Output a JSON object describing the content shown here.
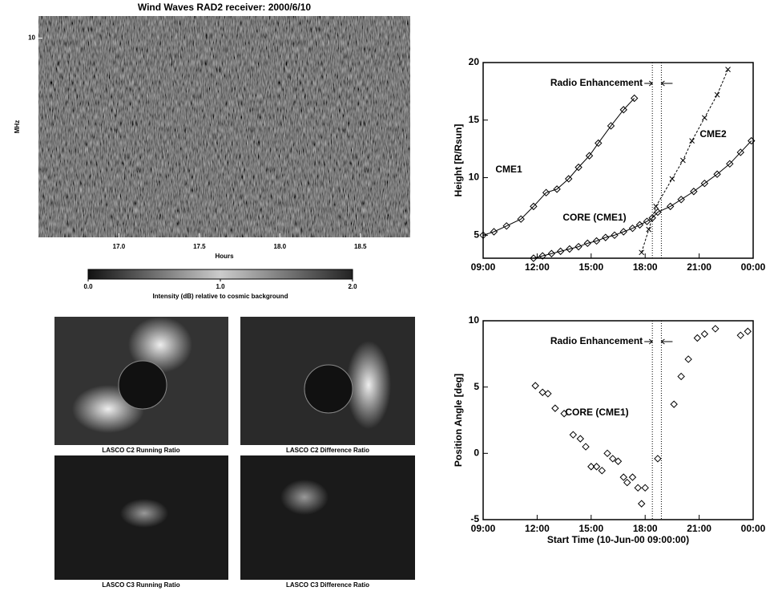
{
  "chart_data": [
    {
      "type": "spectrogram",
      "title": "Wind Waves RAD2 receiver: 2000/6/10",
      "xlabel": "Hours",
      "ylabel": "MHz",
      "xlim": [
        16.5,
        18.81
      ],
      "xticks": [
        {
          "value": 17,
          "label": "17.0"
        },
        {
          "value": 17.5,
          "label": "17.5"
        },
        {
          "value": 18,
          "label": "18.0"
        },
        {
          "value": 18.5,
          "label": "18.5"
        }
      ],
      "ylim": [
        1,
        11
      ],
      "yticks": [
        10
      ],
      "colorbar": {
        "label": "Intensity (dB) relative to cosmic background",
        "lim": [
          0,
          2
        ],
        "ticks": [
          {
            "value": 0,
            "label": "0.0"
          },
          {
            "value": 1,
            "label": "1.0"
          },
          {
            "value": 2,
            "label": "2.0"
          }
        ]
      }
    },
    {
      "type": "scatter",
      "ylabel": "Height [R/Rsun]",
      "annotation": "Radio Enhancement",
      "vlines": [
        18.4,
        18.9
      ],
      "xlim": [
        9,
        24
      ],
      "xticks": [
        {
          "value": 9,
          "label": "09:00"
        },
        {
          "value": 12,
          "label": "12:00"
        },
        {
          "value": 15,
          "label": "15:00"
        },
        {
          "value": 18,
          "label": "18:00"
        },
        {
          "value": 21,
          "label": "21:00"
        },
        {
          "value": 24,
          "label": "00:00"
        }
      ],
      "ylim": [
        3,
        20
      ],
      "yticks": [
        5,
        10,
        15,
        20
      ],
      "series": [
        {
          "name": "CME1",
          "marker": "diamond",
          "color": "#000000",
          "x": [
            9.0,
            9.6,
            10.3,
            11.1,
            11.8,
            12.5,
            13.1,
            13.75,
            14.3,
            14.9,
            15.4,
            16.1,
            16.8,
            17.4
          ],
          "values": [
            5.0,
            5.3,
            5.8,
            6.4,
            7.5,
            8.7,
            9.0,
            9.9,
            10.9,
            11.9,
            13.0,
            14.5,
            15.9,
            16.9
          ]
        },
        {
          "name": "CORE (CME1)",
          "marker": "diamond",
          "color": "#000000",
          "x": [
            11.8,
            12.3,
            12.8,
            13.3,
            13.8,
            14.3,
            14.8,
            15.3,
            15.8,
            16.3,
            16.8,
            17.3,
            17.7,
            18.1,
            18.4,
            18.7,
            19.4,
            20.0,
            20.7,
            21.3,
            22.0,
            22.7,
            23.3,
            23.9
          ],
          "values": [
            3.0,
            3.2,
            3.4,
            3.6,
            3.8,
            4.0,
            4.3,
            4.5,
            4.8,
            5.0,
            5.3,
            5.6,
            5.9,
            6.2,
            6.5,
            7.0,
            7.5,
            8.1,
            8.8,
            9.5,
            10.3,
            11.2,
            12.2,
            13.2
          ]
        },
        {
          "name": "CME2",
          "marker": "x",
          "color": "#000000",
          "x": [
            17.8,
            18.2,
            18.6,
            19.5,
            20.1,
            20.6,
            21.3,
            22.0,
            22.6
          ],
          "values": [
            3.5,
            5.5,
            7.5,
            9.9,
            11.5,
            13.2,
            15.2,
            17.2,
            19.4
          ]
        }
      ]
    },
    {
      "type": "scatter",
      "ylabel": "Position Angle [deg]",
      "xlabel": "Start Time (10-Jun-00 09:00:00)",
      "annotation": "Radio Enhancement",
      "vlines": [
        18.4,
        18.9
      ],
      "xlim": [
        9,
        24
      ],
      "xticks": [
        {
          "value": 9,
          "label": "09:00"
        },
        {
          "value": 12,
          "label": "12:00"
        },
        {
          "value": 15,
          "label": "15:00"
        },
        {
          "value": 18,
          "label": "18:00"
        },
        {
          "value": 21,
          "label": "21:00"
        },
        {
          "value": 24,
          "label": "00:00"
        }
      ],
      "ylim": [
        -5,
        10
      ],
      "yticks": [
        -5,
        0,
        5,
        10
      ],
      "series": [
        {
          "name": "CORE (CME1)",
          "marker": "diamond",
          "color": "#000000",
          "x": [
            11.9,
            12.3,
            12.6,
            13.0,
            13.5,
            14.0,
            14.4,
            14.7,
            15.0,
            15.3,
            15.6,
            15.9,
            16.2,
            16.5,
            16.8,
            17.0,
            17.3,
            17.6,
            17.8,
            18.0,
            18.7,
            19.6,
            20.0,
            20.4,
            20.9,
            21.3,
            21.9,
            23.3,
            23.7
          ],
          "values": [
            5.1,
            4.6,
            4.5,
            3.4,
            3.0,
            1.4,
            1.1,
            0.5,
            -1.0,
            -1.0,
            -1.3,
            0.0,
            -0.4,
            -0.6,
            -1.8,
            -2.2,
            -1.8,
            -2.6,
            -3.8,
            -2.6,
            -0.4,
            3.7,
            5.8,
            7.1,
            8.7,
            9.0,
            9.4,
            8.9,
            9.2
          ]
        }
      ]
    }
  ],
  "images": {
    "captions": [
      "LASCO C2 Running Ratio",
      "LASCO C2 Difference Ratio",
      "LASCO C3 Running Ratio",
      "LASCO C3 Difference Ratio"
    ]
  }
}
